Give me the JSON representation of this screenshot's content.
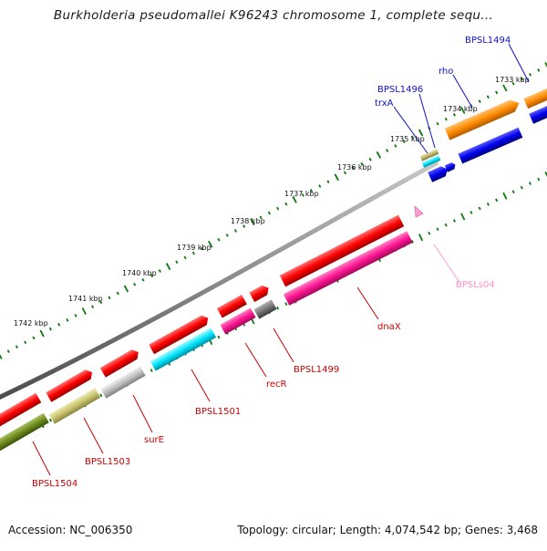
{
  "title": "Burkholderia pseudomallei K96243 chromosome 1, complete sequ...",
  "footer": {
    "accession": "Accession: NC_006350",
    "summary": "Topology: circular; Length: 4,074,542 bp; Genes: 3,468"
  },
  "ruler": {
    "labels": [
      "1733 kbp",
      "1734 kbp",
      "1735 kbp",
      "1736 kbp",
      "1737 kbp",
      "1738 kbp",
      "1739 kbp",
      "1740 kbp",
      "1741 kbp",
      "1742 kbp"
    ]
  },
  "gene_labels": {
    "BPSL1494": "BPSL1494",
    "rho": "rho",
    "BPSL1496": "BPSL1496",
    "trxA": "trxA",
    "BPSLs04": "BPSLs04",
    "dnaX": "dnaX",
    "BPSL1499": "BPSL1499",
    "recR": "recR",
    "BPSL1501": "BPSL1501",
    "surE": "surE",
    "BPSL1503": "BPSL1503",
    "BPSL1504": "BPSL1504"
  },
  "colors": {
    "tick": "#0a7a0a",
    "backbone": "#8a8a8a",
    "red": "#ff0000",
    "pink": "#ff1493",
    "light_pink": "#ff8fc8",
    "cyan": "#00e5ff",
    "blue": "#0000ee",
    "orange": "#ff8c00",
    "olive_light": "#c8c46e",
    "olive_dark": "#6e8c1e",
    "gray": "#777777",
    "silver": "#c0c0c0",
    "tan": "#bdb76b",
    "blue_label": "#1010c8",
    "red_label": "#cc0000"
  }
}
